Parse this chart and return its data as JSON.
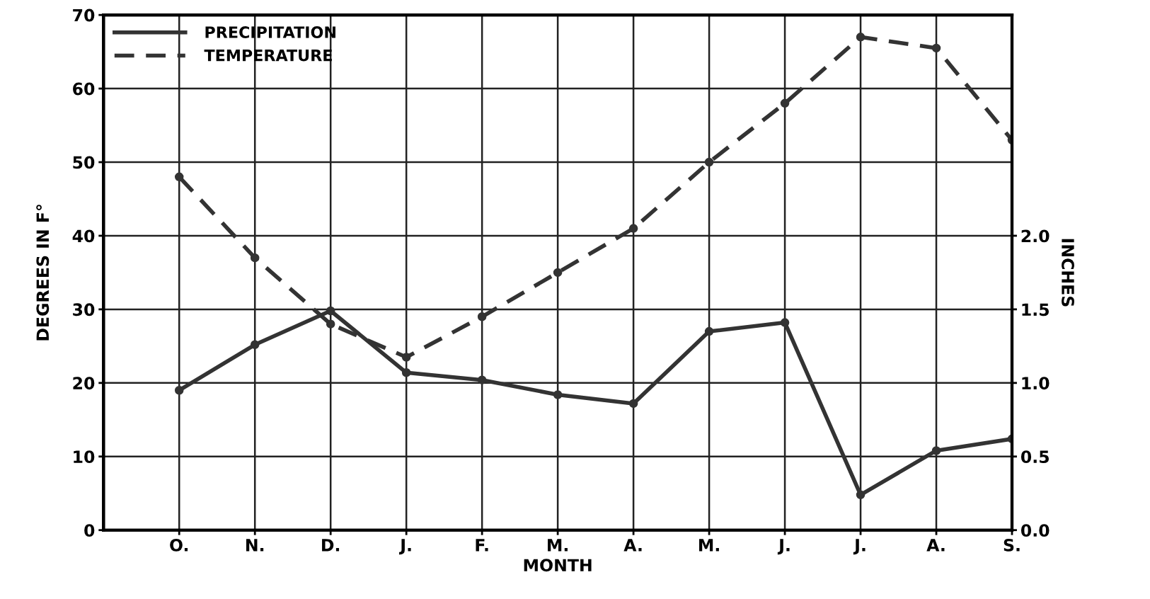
{
  "chart_data": {
    "type": "line",
    "xlabel": "MONTH",
    "ylabel": "DEGREES IN F°",
    "y2label": "INCHES",
    "categories": [
      "O.",
      "N.",
      "D.",
      "J.",
      "F.",
      "M.",
      "A.",
      "M.",
      "J.",
      "J.",
      "A.",
      "S."
    ],
    "series": [
      {
        "name": "PRECIPITATION",
        "color": "#333333",
        "line_style": "solid",
        "axis": "y2",
        "values": [
          0.95,
          1.26,
          1.49,
          1.07,
          1.02,
          0.92,
          0.86,
          1.35,
          1.41,
          0.24,
          0.54,
          0.62
        ]
      },
      {
        "name": "TEMPERATURE",
        "color": "#333333",
        "line_style": "dashed",
        "values": [
          48,
          37,
          28,
          23.5,
          29,
          35,
          41,
          50,
          58,
          67,
          65.5,
          53
        ]
      }
    ],
    "ylim": [
      0,
      70
    ],
    "yticks": [
      0,
      10,
      20,
      30,
      40,
      50,
      60,
      70
    ],
    "y2lim": [
      0,
      3.5
    ],
    "y2ticks": [
      {
        "value": 0,
        "label": "0.0"
      },
      0.5,
      {
        "value": 1,
        "label": "1.0"
      },
      1.5,
      {
        "value": 2,
        "label": "2.0"
      }
    ],
    "grid": true,
    "legend": "top left",
    "marker": "circle"
  }
}
